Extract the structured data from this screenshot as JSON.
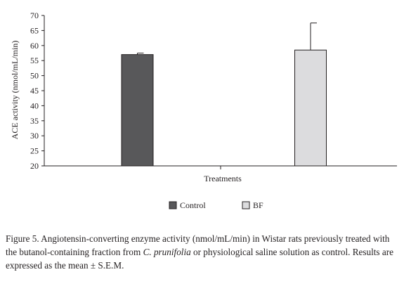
{
  "chart_data": {
    "type": "bar",
    "categories": [
      "Control",
      "BF"
    ],
    "values": [
      57,
      58.5
    ],
    "errors": [
      0.5,
      9
    ],
    "xlabel": "Treatments",
    "ylabel": "ACE activity (nmol/mL/min)",
    "ylim": [
      20,
      70
    ],
    "yticks": [
      20,
      25,
      30,
      35,
      40,
      45,
      50,
      55,
      60,
      65,
      70
    ],
    "ytick_labels": [
      "20",
      "25",
      "30",
      "35",
      "40",
      "45",
      "50",
      "55",
      "60",
      "65",
      "70"
    ],
    "grid": false,
    "legend_position": "bottom-center",
    "colors": [
      "#58585a",
      "#dcdcde"
    ]
  },
  "caption": {
    "part1": "Figure 5. Angiotensin-converting enzyme activity (nmol/mL/min) in Wistar rats previously treated with the butanol-containing fraction from ",
    "species": "C. prunifolia",
    "part2": " or physiological saline solution as control. Results are expressed as the mean ± S.E.M."
  }
}
